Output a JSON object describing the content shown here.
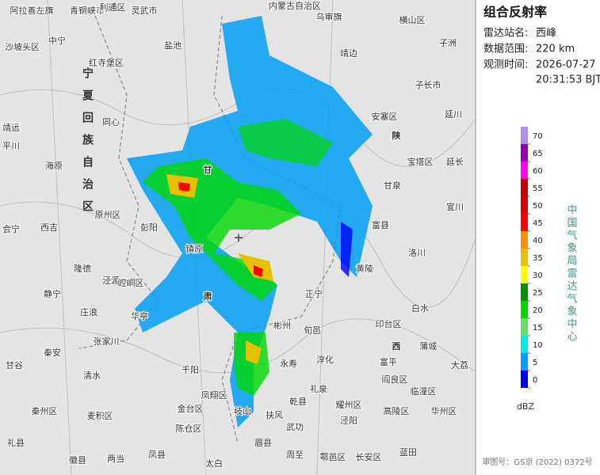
{
  "panel": {
    "title": "组合反射率",
    "station_label": "雷达站名:",
    "station": "西峰",
    "range_label": "数据范围:",
    "range": "220 km",
    "time_label": "观测时间:",
    "date": "2026-07-27",
    "time": "20:31:53 BJT"
  },
  "legend": {
    "ticks": [
      70,
      65,
      60,
      55,
      50,
      45,
      40,
      35,
      30,
      25,
      20,
      15,
      10,
      5,
      0
    ],
    "colors": [
      "#ad90f0",
      "#9600b4",
      "#ff00f0",
      "#c00000",
      "#d60000",
      "#ff0000",
      "#ff9000",
      "#e7c000",
      "#ffff00",
      "#019000",
      "#00d800",
      "#66e066",
      "#00ecec",
      "#01a0f6",
      "#0000f6"
    ],
    "unit": "dBZ",
    "source": "中国气象局雷达气象中心"
  },
  "footer": "审图号：GS京 (2022) 0372号",
  "map": {
    "province_label": "宁夏回族自治区",
    "places": [
      "阿拉善左旗",
      "青铜峡市",
      "利通区",
      "灵武市",
      "内蒙古自治区",
      "乌审旗",
      "横山区",
      "沙坡头区",
      "中宁",
      "盐池",
      "靖边",
      "子长市",
      "同心",
      "海原",
      "靖远",
      "平川",
      "红寺堡区",
      "原州区",
      "西吉",
      "彭阳",
      "镇原",
      "隆德",
      "泾源",
      "崆峒区",
      "静宁",
      "庄浪",
      "华亭",
      "会宁",
      "张家川",
      "秦安",
      "甘谷",
      "清水",
      "千阳",
      "凤翔区",
      "麦积区",
      "秦州区",
      "礼县",
      "两当",
      "徽县",
      "凤县",
      "金台区",
      "陈仓区",
      "太白",
      "眉县",
      "岐山",
      "扶风",
      "武功",
      "乾县",
      "礼泉",
      "永寿",
      "彬州",
      "旬邑",
      "淳化",
      "耀州区",
      "富平",
      "蒲城",
      "白水",
      "印台区",
      "洛川",
      "富县",
      "黄陵",
      "甘泉",
      "宝塔区",
      "延川",
      "安塞区",
      "陕",
      "西",
      "甘",
      "肃",
      "正宁",
      "大荔",
      "临潼区",
      "华州区",
      "高陵区",
      "长安区",
      "蓝田",
      "鄠邑区",
      "周至",
      "泾阳",
      "阎良区",
      "宜川",
      "延长",
      "子洲"
    ]
  }
}
